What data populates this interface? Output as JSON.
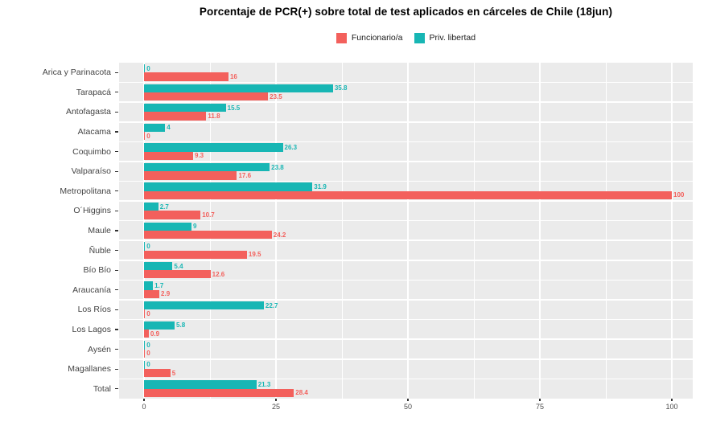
{
  "chart_data": {
    "type": "bar",
    "orientation": "horizontal",
    "title": "Porcentaje de PCR(+) sobre total de test aplicados en cárceles de Chile (18jun)",
    "categories": [
      "Arica y Parinacota",
      "Tarapacá",
      "Antofagasta",
      "Atacama",
      "Coquimbo",
      "Valparaíso",
      "Metropolitana",
      "O´Higgins",
      "Maule",
      "Ñuble",
      "Bío Bío",
      "Araucanía",
      "Los Ríos",
      "Los Lagos",
      "Aysén",
      "Magallanes",
      "Total"
    ],
    "series": [
      {
        "name": "Funcionario/a",
        "color": "#F3605C",
        "values": [
          16,
          23.5,
          11.8,
          0,
          9.3,
          17.6,
          100,
          10.7,
          24.2,
          19.5,
          12.6,
          2.9,
          0,
          0.9,
          0,
          5,
          28.4
        ]
      },
      {
        "name": "Priv. libertad",
        "color": "#17B6B4",
        "values": [
          0,
          35.8,
          15.5,
          4,
          26.3,
          23.8,
          31.9,
          2.7,
          9,
          0,
          5.4,
          1.7,
          22.7,
          5.8,
          0,
          0,
          21.3
        ]
      }
    ],
    "x_ticks": [
      0,
      25,
      50,
      75,
      100
    ],
    "x_minor_ticks": [
      12.5,
      37.5,
      62.5,
      87.5
    ],
    "xlim": [
      0,
      100
    ],
    "legend_position": "top",
    "colors": {
      "panel_background": "#EBEBEB",
      "grid": "#FFFFFF",
      "axis_tick_text": "#4D4D4D",
      "category_text": "#444444",
      "tick_mark": "#333333"
    }
  }
}
